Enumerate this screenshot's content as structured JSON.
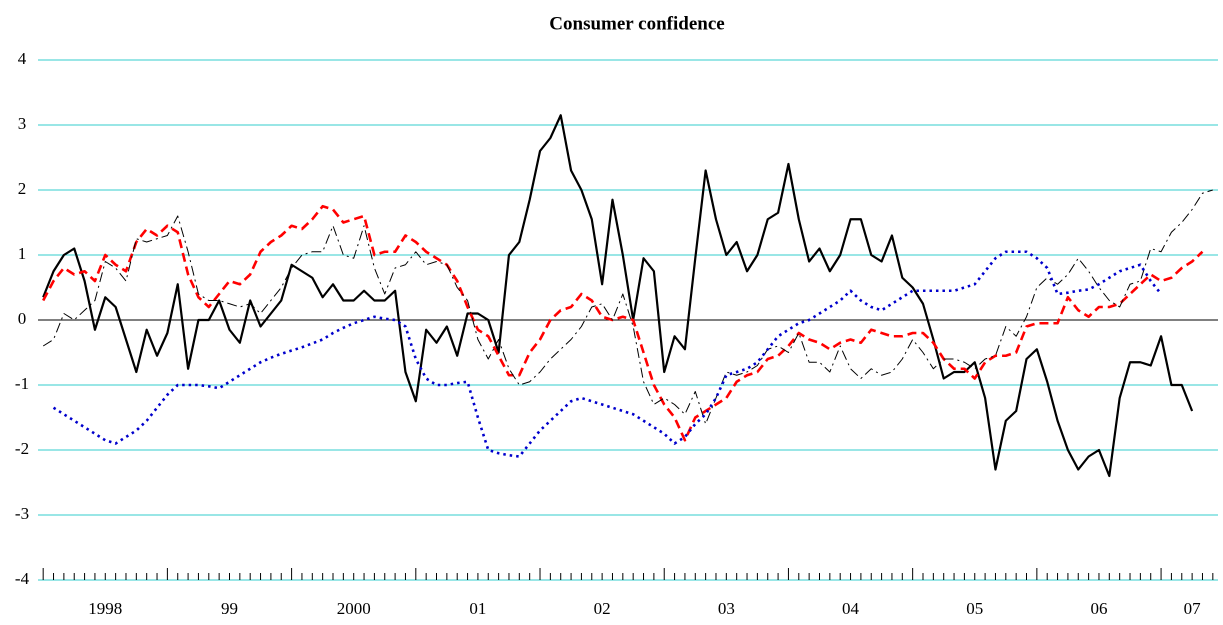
{
  "chart_data": {
    "type": "line",
    "title": "Consumer confidence",
    "categories": [
      null,
      null,
      null,
      null,
      null,
      null,
      "1998",
      null,
      null,
      null,
      null,
      null,
      null,
      null,
      null,
      null,
      null,
      null,
      "99",
      null,
      null,
      null,
      null,
      null,
      null,
      null,
      null,
      null,
      null,
      null,
      "2000",
      null,
      null,
      null,
      null,
      null,
      null,
      null,
      null,
      null,
      null,
      null,
      "01",
      null,
      null,
      null,
      null,
      null,
      null,
      null,
      null,
      null,
      null,
      null,
      "02",
      null,
      null,
      null,
      null,
      null,
      null,
      null,
      null,
      null,
      null,
      null,
      "03",
      null,
      null,
      null,
      null,
      null,
      null,
      null,
      null,
      null,
      null,
      null,
      "04",
      null,
      null,
      null,
      null,
      null,
      null,
      null,
      null,
      null,
      null,
      null,
      "05",
      null,
      null,
      null,
      null,
      null,
      null,
      null,
      null,
      null,
      null,
      null,
      "06",
      null,
      null,
      null,
      null,
      null,
      null,
      null,
      null,
      "07",
      null,
      null
    ],
    "ylim": [
      -4,
      4
    ],
    "yticks": [
      -4,
      -3,
      -2,
      -1,
      0,
      1,
      2,
      3,
      4
    ],
    "grid": true,
    "grid_color": "#33cccc",
    "series": [
      {
        "color": "#000000",
        "dash": "solid",
        "width": 2.2,
        "values": [
          0.35,
          0.75,
          1.0,
          1.1,
          0.6,
          -0.15,
          0.35,
          0.2,
          -0.3,
          -0.8,
          -0.15,
          -0.55,
          -0.2,
          0.55,
          -0.75,
          0,
          0,
          0.3,
          -0.15,
          -0.35,
          0.3,
          -0.1,
          0.1,
          0.3,
          0.85,
          0.75,
          0.65,
          0.35,
          0.55,
          0.3,
          0.3,
          0.45,
          0.3,
          0.3,
          0.45,
          -0.8,
          -1.25,
          -0.15,
          -0.35,
          -0.1,
          -0.55,
          0.1,
          0.1,
          0.0,
          -0.5,
          1.0,
          1.2,
          1.85,
          2.6,
          2.8,
          3.15,
          2.3,
          2.0,
          1.55,
          0.55,
          1.85,
          1.0,
          0.0,
          0.95,
          0.75,
          -0.8,
          -0.25,
          -0.45,
          0.95,
          2.3,
          1.55,
          1.0,
          1.2,
          0.75,
          1.0,
          1.55,
          1.65,
          2.4,
          1.55,
          0.9,
          1.1,
          0.75,
          1.0,
          1.55,
          1.55,
          1.0,
          0.9,
          1.3,
          0.65,
          0.5,
          0.25,
          -0.3,
          -0.9,
          -0.8,
          -0.8,
          -0.65,
          -1.2,
          -2.3,
          -1.55,
          -1.4,
          -0.6,
          -0.45,
          -0.95,
          -1.55,
          -2.0,
          -2.3,
          -2.1,
          -2.0,
          -2.4,
          -1.2,
          -0.65,
          -0.65,
          -0.7,
          -0.25,
          -1.0,
          -1.0,
          -1.4,
          null,
          null
        ]
      },
      {
        "color": "#ff0000",
        "dash": "dashed",
        "width": 2.6,
        "values": [
          0.3,
          0.6,
          0.8,
          0.7,
          0.75,
          0.6,
          1.0,
          0.85,
          0.75,
          1.2,
          1.4,
          1.3,
          1.45,
          1.35,
          0.7,
          0.35,
          0.2,
          0.4,
          0.6,
          0.55,
          0.7,
          1.05,
          1.2,
          1.3,
          1.45,
          1.4,
          1.55,
          1.75,
          1.7,
          1.5,
          1.55,
          1.6,
          1.0,
          1.05,
          1.05,
          1.3,
          1.2,
          1.05,
          0.95,
          0.85,
          0.6,
          0.2,
          -0.15,
          -0.25,
          -0.55,
          -0.85,
          -0.85,
          -0.5,
          -0.3,
          0.0,
          0.15,
          0.2,
          0.4,
          0.3,
          0.05,
          0.0,
          0.05,
          0.0,
          -0.5,
          -1.0,
          -1.3,
          -1.5,
          -1.85,
          -1.5,
          -1.4,
          -1.3,
          -1.2,
          -0.95,
          -0.85,
          -0.8,
          -0.6,
          -0.55,
          -0.4,
          -0.2,
          -0.3,
          -0.35,
          -0.45,
          -0.35,
          -0.3,
          -0.35,
          -0.15,
          -0.2,
          -0.25,
          -0.25,
          -0.2,
          -0.2,
          -0.35,
          -0.6,
          -0.75,
          -0.75,
          -0.9,
          -0.65,
          -0.55,
          -0.55,
          -0.5,
          -0.1,
          -0.05,
          -0.05,
          -0.05,
          0.35,
          0.15,
          0.05,
          0.2,
          0.2,
          0.25,
          0.4,
          0.55,
          0.7,
          0.6,
          0.65,
          0.8,
          0.9,
          1.05,
          null
        ]
      },
      {
        "color": "#000000",
        "dash": "dashdot",
        "width": 1,
        "values": [
          -0.4,
          -0.3,
          0.1,
          0.0,
          0.15,
          0.3,
          0.9,
          0.8,
          0.6,
          1.25,
          1.2,
          1.25,
          1.3,
          1.6,
          1.05,
          0.4,
          0.3,
          0.3,
          0.25,
          0.2,
          0.25,
          0.1,
          0.3,
          0.5,
          0.8,
          1.0,
          1.05,
          1.05,
          1.45,
          1.0,
          0.95,
          1.45,
          0.8,
          0.4,
          0.8,
          0.85,
          1.05,
          0.85,
          0.9,
          0.85,
          0.5,
          0.3,
          -0.3,
          -0.6,
          -0.3,
          -0.75,
          -1.0,
          -0.95,
          -0.8,
          -0.6,
          -0.45,
          -0.3,
          -0.1,
          0.2,
          0.25,
          0.0,
          0.4,
          -0.1,
          -0.95,
          -1.3,
          -1.2,
          -1.3,
          -1.45,
          -1.1,
          -1.6,
          -1.2,
          -0.8,
          -0.85,
          -0.8,
          -0.7,
          -0.45,
          -0.4,
          -0.5,
          -0.2,
          -0.65,
          -0.65,
          -0.8,
          -0.4,
          -0.75,
          -0.9,
          -0.75,
          -0.85,
          -0.8,
          -0.6,
          -0.3,
          -0.5,
          -0.75,
          -0.6,
          -0.6,
          -0.65,
          -0.75,
          -0.6,
          -0.55,
          -0.1,
          -0.25,
          0.05,
          0.5,
          0.65,
          0.55,
          0.7,
          0.95,
          0.75,
          0.5,
          0.3,
          0.2,
          0.55,
          0.6,
          1.1,
          1.05,
          1.35,
          1.5,
          1.7,
          1.95,
          2.0
        ]
      },
      {
        "color": "#0000cc",
        "dash": "dotted",
        "width": 2.6,
        "values": [
          null,
          -1.35,
          -1.45,
          -1.55,
          -1.65,
          -1.75,
          -1.85,
          -1.9,
          -1.8,
          -1.7,
          -1.55,
          -1.35,
          -1.15,
          -1.0,
          -1.0,
          -1.0,
          -1.02,
          -1.05,
          -0.95,
          -0.85,
          -0.75,
          -0.65,
          -0.58,
          -0.52,
          -0.47,
          -0.42,
          -0.36,
          -0.3,
          -0.2,
          -0.12,
          -0.05,
          0.0,
          0.05,
          0.02,
          0.0,
          -0.1,
          -0.6,
          -0.9,
          -1.0,
          -1.0,
          -0.97,
          -0.95,
          -1.5,
          -2.0,
          -2.05,
          -2.08,
          -2.1,
          -1.9,
          -1.7,
          -1.55,
          -1.4,
          -1.25,
          -1.2,
          -1.25,
          -1.3,
          -1.35,
          -1.4,
          -1.45,
          -1.55,
          -1.65,
          -1.75,
          -1.9,
          -1.8,
          -1.6,
          -1.45,
          -1.2,
          -0.85,
          -0.8,
          -0.75,
          -0.65,
          -0.45,
          -0.25,
          -0.15,
          -0.05,
          0.0,
          0.1,
          0.2,
          0.3,
          0.45,
          0.3,
          0.2,
          0.15,
          0.25,
          0.35,
          0.45,
          0.45,
          0.45,
          0.45,
          0.45,
          0.5,
          0.55,
          0.75,
          0.95,
          1.05,
          1.05,
          1.05,
          0.95,
          0.8,
          0.4,
          0.42,
          0.45,
          0.47,
          0.55,
          0.65,
          0.75,
          0.8,
          0.85,
          0.6,
          0.4,
          null,
          null,
          null,
          null,
          null
        ]
      }
    ]
  }
}
